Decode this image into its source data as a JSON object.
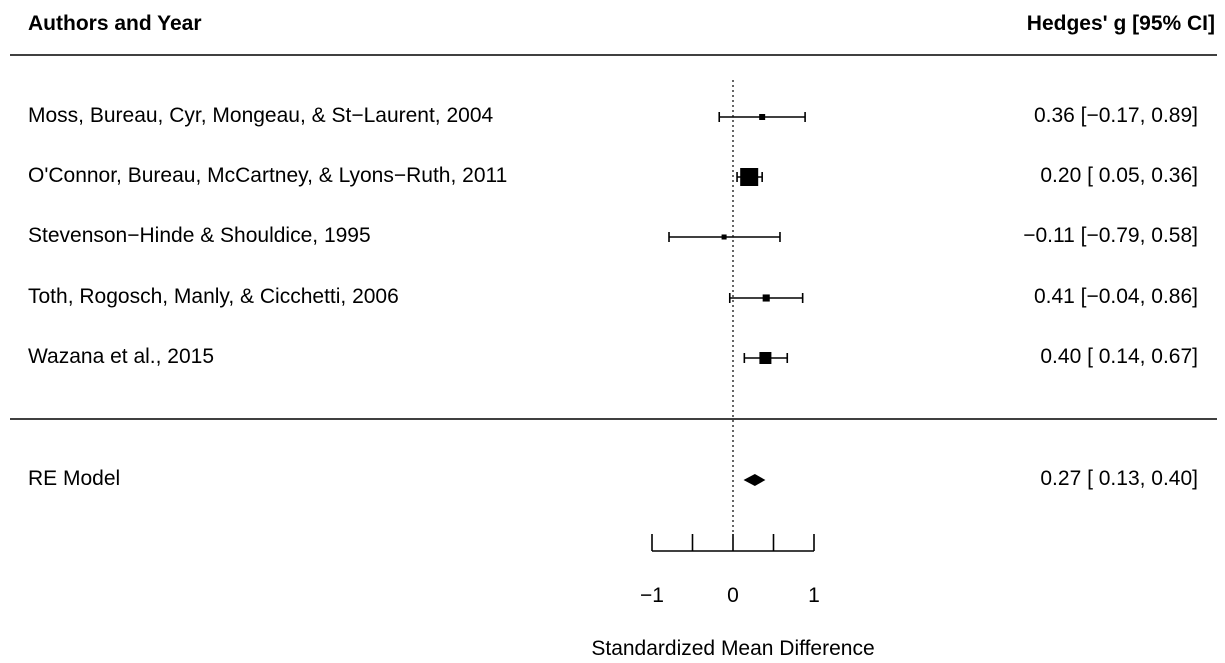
{
  "chart_data": {
    "type": "forest",
    "columns": {
      "left_header": "Authors and Year",
      "right_header": "Hedges' g [95% CI]"
    },
    "studies": [
      {
        "label": "Moss, Bureau, Cyr, Mongeau, & St−Laurent, 2004",
        "estimate": 0.36,
        "ci_low": -0.17,
        "ci_high": 0.89,
        "ci_text": "0.36 [−0.17, 0.89]",
        "weight": 1.0
      },
      {
        "label": "O'Connor, Bureau, McCartney, & Lyons−Ruth, 2011",
        "estimate": 0.2,
        "ci_low": 0.05,
        "ci_high": 0.36,
        "ci_text": "0.20 [ 0.05, 0.36]",
        "weight": 9.0
      },
      {
        "label": "Stevenson−Hinde & Shouldice, 1995",
        "estimate": -0.11,
        "ci_low": -0.79,
        "ci_high": 0.58,
        "ci_text": "−0.11 [−0.79, 0.58]",
        "weight": 0.7
      },
      {
        "label": "Toth, Rogosch, Manly, & Cicchetti, 2006",
        "estimate": 0.41,
        "ci_low": -0.04,
        "ci_high": 0.86,
        "ci_text": "0.41 [−0.04, 0.86]",
        "weight": 1.4
      },
      {
        "label": "Wazana et al., 2015",
        "estimate": 0.4,
        "ci_low": 0.14,
        "ci_high": 0.67,
        "ci_text": "0.40 [ 0.14, 0.67]",
        "weight": 4.0
      }
    ],
    "summary": {
      "label": "RE Model",
      "estimate": 0.27,
      "ci_low": 0.13,
      "ci_high": 0.4,
      "ci_text": "0.27 [ 0.13, 0.40]"
    },
    "x_axis": {
      "label": "Standardized Mean Difference",
      "range": [
        -1,
        1
      ],
      "ticks": [
        -1,
        -0.5,
        0,
        0.5,
        1
      ],
      "tick_labels": [
        {
          "value": -1,
          "text": "−1"
        },
        {
          "value": 0,
          "text": "0"
        },
        {
          "value": 1,
          "text": "1"
        }
      ]
    },
    "reference_line": 0
  }
}
